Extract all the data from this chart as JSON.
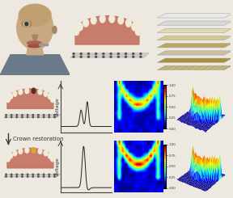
{
  "bg_color": "#ede8e0",
  "crown_text": "Crown restoration",
  "voltage_label": "Voltage",
  "colormap": "jet",
  "signal1_amplitude": 0.12,
  "signal2_amplitude": 0.75,
  "text_color": "#333333",
  "font_size_label": 4.5,
  "font_size_crown": 5.0,
  "head_skin": "#c8a882",
  "head_shadow": "#a08860",
  "teeth_color": "#f0ead8",
  "gum_color": "#c47060",
  "sensor_color": "#888888",
  "layer_colors": [
    "#e8e8e8",
    "#d8d8d8",
    "#e0d8b0",
    "#d4c890",
    "#b8a860",
    "#c8c0a0",
    "#a89040",
    "#c0b878"
  ],
  "missing_tooth_color": "#5a3020",
  "crown_tooth_color": "#d4aa30",
  "hmap1_arch_val": 0.85,
  "hmap2_arch_val": 0.95,
  "arrow_red": "#cc2222"
}
